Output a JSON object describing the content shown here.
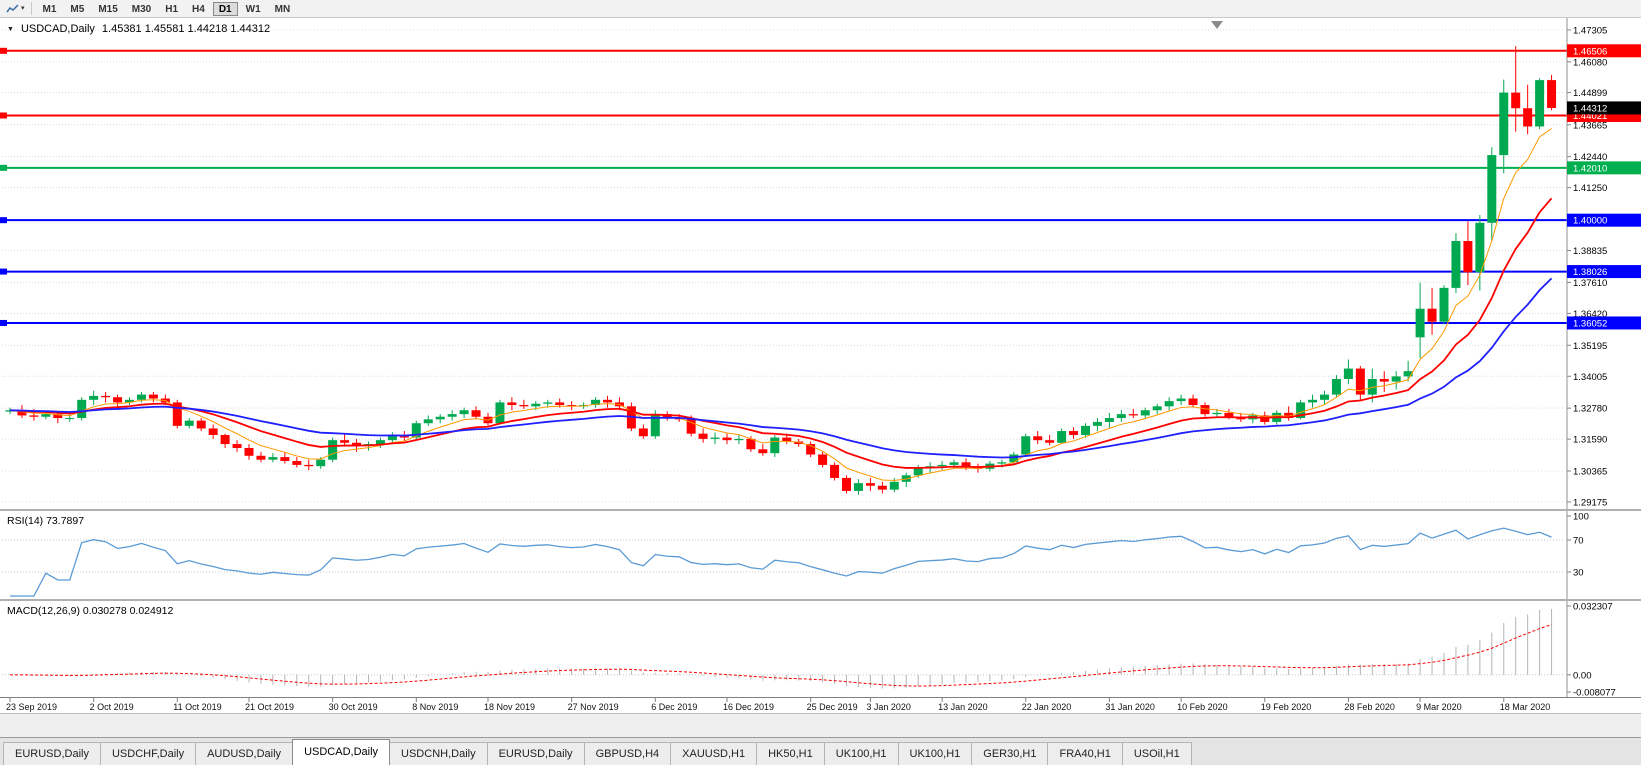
{
  "toolbar": {
    "timeframes": [
      "M1",
      "M5",
      "M15",
      "M30",
      "H1",
      "H4",
      "D1",
      "W1",
      "MN"
    ],
    "active_timeframe": "D1"
  },
  "chart": {
    "symbol_title": "USDCAD,Daily",
    "ohlc_label": "1.45381 1.45581 1.44218 1.44312",
    "current_price": "1.44312",
    "price_scale": {
      "top": 1.47305,
      "bottom": 1.29175
    },
    "price_ticks": [
      "1.47305",
      "1.46080",
      "1.44899",
      "1.43665",
      "1.42440",
      "1.41250",
      "1.40000",
      "1.38835",
      "1.37610",
      "1.36420",
      "1.35195",
      "1.34005",
      "1.32780",
      "1.31590",
      "1.30365",
      "1.29175"
    ],
    "hlines": [
      {
        "price": 1.46506,
        "label": "1.46506",
        "color": "#ff0000"
      },
      {
        "price": 1.44021,
        "label": "1.44021",
        "color": "#ff0000"
      },
      {
        "price": 1.4201,
        "label": "1.42010",
        "color": "#00b050"
      },
      {
        "price": 1.4,
        "label": "1.40000",
        "color": "#0000ff"
      },
      {
        "price": 1.38026,
        "label": "1.38026",
        "color": "#0000ff"
      },
      {
        "price": 1.36052,
        "label": "1.36052",
        "color": "#0000ff"
      }
    ],
    "date_ticks": [
      {
        "index": 0,
        "label": "23 Sep 2019"
      },
      {
        "index": 7,
        "label": "2 Oct 2019"
      },
      {
        "index": 14,
        "label": "11 Oct 2019"
      },
      {
        "index": 20,
        "label": "21 Oct 2019"
      },
      {
        "index": 27,
        "label": "30 Oct 2019"
      },
      {
        "index": 34,
        "label": "8 Nov 2019"
      },
      {
        "index": 40,
        "label": "18 Nov 2019"
      },
      {
        "index": 47,
        "label": "27 Nov 2019"
      },
      {
        "index": 54,
        "label": "6 Dec 2019"
      },
      {
        "index": 60,
        "label": "16 Dec 2019"
      },
      {
        "index": 67,
        "label": "25 Dec 2019"
      },
      {
        "index": 72,
        "label": "3 Jan 2020"
      },
      {
        "index": 78,
        "label": "13 Jan 2020"
      },
      {
        "index": 85,
        "label": "22 Jan 2020"
      },
      {
        "index": 92,
        "label": "31 Jan 2020"
      },
      {
        "index": 98,
        "label": "10 Feb 2020"
      },
      {
        "index": 105,
        "label": "19 Feb 2020"
      },
      {
        "index": 112,
        "label": "28 Feb 2020"
      },
      {
        "index": 118,
        "label": "9 Mar 2020"
      },
      {
        "index": 125,
        "label": "18 Mar 2020"
      }
    ],
    "colors": {
      "up": "#00a84f",
      "down": "#ff0000",
      "grid": "#dcdcdc",
      "background": "#ffffff"
    }
  },
  "rsi": {
    "label": "RSI(14) 73.7897",
    "value": 73.7897,
    "period": 14,
    "axis": [
      "100",
      "70",
      "30"
    ],
    "grid_levels": [
      70,
      30
    ],
    "color": "#5b9bd5"
  },
  "macd": {
    "label": "MACD(12,26,9) 0.030278 0.024912",
    "macd_value": 0.030278,
    "signal_value": 0.024912,
    "params": [
      12,
      26,
      9
    ],
    "scale_max": 0.032307,
    "scale_min": -0.008077,
    "axis_max_label": "0.032307",
    "axis_zero_label": "0.00",
    "axis_min_label": "-0.008077",
    "histogram_color": "#b4b4b4",
    "signal_color": "#ff0000"
  },
  "tabs": {
    "items": [
      "EURUSD,Daily",
      "USDCHF,Daily",
      "AUDUSD,Daily",
      "USDCAD,Daily",
      "USDCNH,Daily",
      "EURUSD,Daily",
      "GBPUSD,H4",
      "XAUUSD,H1",
      "HK50,H1",
      "UK100,H1",
      "UK100,H1",
      "GER30,H1",
      "FRA40,H1",
      "USOil,H1"
    ],
    "active_index": 3
  },
  "chart_data": {
    "type": "candlestick",
    "symbol": "USDCAD",
    "timeframe": "Daily",
    "ohlc_current": {
      "open": 1.45381,
      "high": 1.45581,
      "low": 1.44218,
      "close": 1.44312
    },
    "overlays": [
      {
        "name": "ma-fast",
        "period": 6,
        "color": "#ff9900",
        "width": 1
      },
      {
        "name": "ma-mid",
        "period": 14,
        "color": "#ff0000",
        "width": 1.8
      },
      {
        "name": "ma-slow",
        "period": 30,
        "color": "#1f1fff",
        "width": 1.8
      }
    ],
    "candles": [
      [
        1.3265,
        1.328,
        1.3255,
        1.327
      ],
      [
        1.327,
        1.329,
        1.324,
        1.325
      ],
      [
        1.325,
        1.3275,
        1.323,
        1.3245
      ],
      [
        1.3245,
        1.3265,
        1.3235,
        1.3255
      ],
      [
        1.3255,
        1.326,
        1.322,
        1.324
      ],
      [
        1.324,
        1.3255,
        1.3225,
        1.324
      ],
      [
        1.324,
        1.332,
        1.323,
        1.331
      ],
      [
        1.331,
        1.3345,
        1.329,
        1.3325
      ],
      [
        1.3325,
        1.334,
        1.33,
        1.332
      ],
      [
        1.332,
        1.333,
        1.328,
        1.33
      ],
      [
        1.33,
        1.332,
        1.329,
        1.331
      ],
      [
        1.331,
        1.334,
        1.33,
        1.333
      ],
      [
        1.333,
        1.334,
        1.33,
        1.3315
      ],
      [
        1.3315,
        1.333,
        1.329,
        1.33
      ],
      [
        1.33,
        1.331,
        1.32,
        1.321
      ],
      [
        1.321,
        1.324,
        1.32,
        1.323
      ],
      [
        1.323,
        1.324,
        1.319,
        1.32
      ],
      [
        1.32,
        1.3215,
        1.316,
        1.3175
      ],
      [
        1.3175,
        1.318,
        1.3125,
        1.314
      ],
      [
        1.314,
        1.3155,
        1.311,
        1.3125
      ],
      [
        1.3125,
        1.314,
        1.308,
        1.3095
      ],
      [
        1.3095,
        1.311,
        1.307,
        1.308
      ],
      [
        1.308,
        1.3105,
        1.307,
        1.309
      ],
      [
        1.309,
        1.311,
        1.3065,
        1.3075
      ],
      [
        1.3075,
        1.309,
        1.305,
        1.306
      ],
      [
        1.306,
        1.308,
        1.304,
        1.3055
      ],
      [
        1.3055,
        1.309,
        1.3045,
        1.308
      ],
      [
        1.308,
        1.3165,
        1.307,
        1.3155
      ],
      [
        1.3155,
        1.318,
        1.313,
        1.3145
      ],
      [
        1.3145,
        1.316,
        1.311,
        1.3135
      ],
      [
        1.3135,
        1.315,
        1.3115,
        1.314
      ],
      [
        1.314,
        1.3165,
        1.3125,
        1.3155
      ],
      [
        1.3155,
        1.3185,
        1.314,
        1.3175
      ],
      [
        1.3175,
        1.319,
        1.315,
        1.3165
      ],
      [
        1.3165,
        1.323,
        1.3155,
        1.322
      ],
      [
        1.322,
        1.325,
        1.321,
        1.3235
      ],
      [
        1.3235,
        1.3255,
        1.322,
        1.3245
      ],
      [
        1.3245,
        1.327,
        1.323,
        1.3255
      ],
      [
        1.3255,
        1.328,
        1.324,
        1.327
      ],
      [
        1.327,
        1.3285,
        1.3235,
        1.3245
      ],
      [
        1.3245,
        1.326,
        1.321,
        1.322
      ],
      [
        1.322,
        1.331,
        1.3215,
        1.33
      ],
      [
        1.33,
        1.332,
        1.327,
        1.329
      ],
      [
        1.329,
        1.331,
        1.3275,
        1.3285
      ],
      [
        1.3285,
        1.3305,
        1.327,
        1.3295
      ],
      [
        1.3295,
        1.331,
        1.328,
        1.33
      ],
      [
        1.33,
        1.3315,
        1.328,
        1.329
      ],
      [
        1.329,
        1.3305,
        1.327,
        1.3285
      ],
      [
        1.3285,
        1.33,
        1.3275,
        1.329
      ],
      [
        1.329,
        1.332,
        1.328,
        1.331
      ],
      [
        1.331,
        1.3325,
        1.328,
        1.33
      ],
      [
        1.33,
        1.332,
        1.327,
        1.3285
      ],
      [
        1.3285,
        1.33,
        1.319,
        1.32
      ],
      [
        1.32,
        1.3215,
        1.316,
        1.317
      ],
      [
        1.317,
        1.327,
        1.316,
        1.3255
      ],
      [
        1.3255,
        1.3265,
        1.323,
        1.324
      ],
      [
        1.324,
        1.3255,
        1.3225,
        1.3235
      ],
      [
        1.3235,
        1.325,
        1.317,
        1.318
      ],
      [
        1.318,
        1.32,
        1.3145,
        1.316
      ],
      [
        1.316,
        1.3185,
        1.314,
        1.3165
      ],
      [
        1.3165,
        1.318,
        1.314,
        1.3155
      ],
      [
        1.3155,
        1.3175,
        1.314,
        1.316
      ],
      [
        1.316,
        1.317,
        1.311,
        1.312
      ],
      [
        1.312,
        1.314,
        1.3095,
        1.3105
      ],
      [
        1.3105,
        1.3175,
        1.309,
        1.3165
      ],
      [
        1.3165,
        1.318,
        1.314,
        1.315
      ],
      [
        1.315,
        1.316,
        1.313,
        1.314
      ],
      [
        1.314,
        1.315,
        1.309,
        1.31
      ],
      [
        1.31,
        1.311,
        1.305,
        1.306
      ],
      [
        1.306,
        1.307,
        1.3,
        1.301
      ],
      [
        1.301,
        1.302,
        1.295,
        1.296
      ],
      [
        1.296,
        1.3005,
        1.2945,
        1.299
      ],
      [
        1.299,
        1.301,
        1.296,
        1.298
      ],
      [
        1.298,
        1.2995,
        1.295,
        1.2965
      ],
      [
        1.2965,
        1.301,
        1.2955,
        1.2995
      ],
      [
        1.2995,
        1.303,
        1.2975,
        1.302
      ],
      [
        1.302,
        1.306,
        1.301,
        1.305
      ],
      [
        1.305,
        1.307,
        1.303,
        1.3055
      ],
      [
        1.3055,
        1.3075,
        1.304,
        1.306
      ],
      [
        1.306,
        1.308,
        1.3045,
        1.307
      ],
      [
        1.307,
        1.3085,
        1.304,
        1.305
      ],
      [
        1.305,
        1.3065,
        1.303,
        1.3045
      ],
      [
        1.3045,
        1.3075,
        1.3035,
        1.3065
      ],
      [
        1.3065,
        1.308,
        1.305,
        1.307
      ],
      [
        1.307,
        1.311,
        1.306,
        1.31
      ],
      [
        1.31,
        1.318,
        1.309,
        1.317
      ],
      [
        1.317,
        1.319,
        1.314,
        1.3155
      ],
      [
        1.3155,
        1.3175,
        1.3135,
        1.3145
      ],
      [
        1.3145,
        1.32,
        1.314,
        1.319
      ],
      [
        1.319,
        1.3205,
        1.316,
        1.3175
      ],
      [
        1.3175,
        1.322,
        1.3165,
        1.321
      ],
      [
        1.321,
        1.324,
        1.319,
        1.3225
      ],
      [
        1.3225,
        1.326,
        1.32,
        1.324
      ],
      [
        1.324,
        1.327,
        1.3225,
        1.3255
      ],
      [
        1.3255,
        1.3275,
        1.324,
        1.325
      ],
      [
        1.325,
        1.328,
        1.3235,
        1.327
      ],
      [
        1.327,
        1.3295,
        1.3255,
        1.3285
      ],
      [
        1.3285,
        1.332,
        1.327,
        1.3305
      ],
      [
        1.3305,
        1.333,
        1.329,
        1.3315
      ],
      [
        1.3315,
        1.333,
        1.328,
        1.329
      ],
      [
        1.329,
        1.33,
        1.3245,
        1.3255
      ],
      [
        1.3255,
        1.3275,
        1.324,
        1.326
      ],
      [
        1.326,
        1.3275,
        1.3235,
        1.3245
      ],
      [
        1.3245,
        1.326,
        1.3225,
        1.3235
      ],
      [
        1.3235,
        1.326,
        1.322,
        1.325
      ],
      [
        1.325,
        1.3265,
        1.3215,
        1.3225
      ],
      [
        1.3225,
        1.327,
        1.3215,
        1.326
      ],
      [
        1.326,
        1.3285,
        1.323,
        1.324
      ],
      [
        1.324,
        1.331,
        1.3235,
        1.33
      ],
      [
        1.33,
        1.333,
        1.328,
        1.331
      ],
      [
        1.331,
        1.3345,
        1.329,
        1.333
      ],
      [
        1.333,
        1.3405,
        1.332,
        1.339
      ],
      [
        1.339,
        1.3465,
        1.337,
        1.343
      ],
      [
        1.343,
        1.344,
        1.331,
        1.333
      ],
      [
        1.333,
        1.343,
        1.33,
        1.339
      ],
      [
        1.339,
        1.342,
        1.334,
        1.338
      ],
      [
        1.338,
        1.342,
        1.335,
        1.34
      ],
      [
        1.34,
        1.346,
        1.338,
        1.342
      ],
      [
        1.355,
        1.376,
        1.347,
        1.366
      ],
      [
        1.366,
        1.374,
        1.356,
        1.361
      ],
      [
        1.361,
        1.375,
        1.36,
        1.374
      ],
      [
        1.374,
        1.395,
        1.372,
        1.392
      ],
      [
        1.392,
        1.3995,
        1.375,
        1.38
      ],
      [
        1.38,
        1.402,
        1.373,
        1.399
      ],
      [
        1.399,
        1.428,
        1.392,
        1.425
      ],
      [
        1.425,
        1.454,
        1.418,
        1.449
      ],
      [
        1.449,
        1.4668,
        1.434,
        1.443
      ],
      [
        1.443,
        1.452,
        1.433,
        1.436
      ],
      [
        1.436,
        1.4545,
        1.435,
        1.4538
      ],
      [
        1.4538,
        1.4558,
        1.4422,
        1.4431
      ]
    ]
  }
}
